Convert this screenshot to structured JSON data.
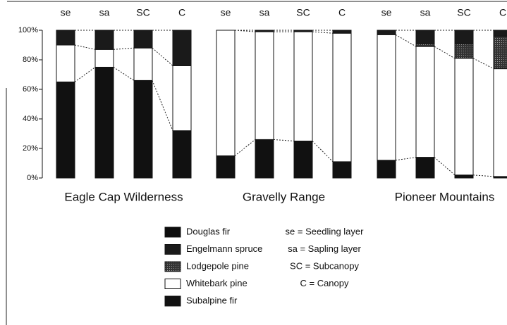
{
  "chart_data": {
    "type": "stacked_bar",
    "ylim": [
      0,
      100
    ],
    "yticks": [
      {
        "value": 0,
        "label": "0%"
      },
      {
        "value": 20,
        "label": "20%"
      },
      {
        "value": 40,
        "label": "40%"
      },
      {
        "value": 60,
        "label": "60%"
      },
      {
        "value": 80,
        "label": "80%"
      },
      {
        "value": 100,
        "label": "100%"
      }
    ],
    "panels": [
      {
        "title": "Eagle Cap Wilderness",
        "categories": [
          "se",
          "sa",
          "SC",
          "C"
        ],
        "series": [
          {
            "name": "Subalpine fir",
            "color": "#111111",
            "values": [
              65,
              75,
              66,
              32
            ]
          },
          {
            "name": "Whitebark pine",
            "color": "#ffffff",
            "values": [
              25,
              12,
              22,
              44
            ]
          },
          {
            "name": "Lodgepole pine",
            "color": "#555555",
            "values": [
              0,
              0,
              0,
              0
            ]
          },
          {
            "name": "Engelmann spruce",
            "color": "#1a1a1a",
            "values": [
              10,
              13,
              12,
              24
            ]
          },
          {
            "name": "Douglas fir",
            "color": "#0d0d0d",
            "values": [
              0,
              0,
              0,
              0
            ]
          }
        ]
      },
      {
        "title": "Gravelly Range",
        "categories": [
          "se",
          "sa",
          "SC",
          "C"
        ],
        "series": [
          {
            "name": "Subalpine fir",
            "color": "#111111",
            "values": [
              15,
              26,
              25,
              11
            ]
          },
          {
            "name": "Whitebark pine",
            "color": "#ffffff",
            "values": [
              85,
              73,
              74,
              87
            ]
          },
          {
            "name": "Lodgepole pine",
            "color": "#555555",
            "values": [
              0,
              0,
              0,
              0
            ]
          },
          {
            "name": "Engelmann spruce",
            "color": "#1a1a1a",
            "values": [
              0,
              1,
              1,
              2
            ]
          },
          {
            "name": "Douglas fir",
            "color": "#0d0d0d",
            "values": [
              0,
              0,
              0,
              0
            ]
          }
        ]
      },
      {
        "title": "Pioneer Mountains",
        "categories": [
          "se",
          "sa",
          "SC",
          "C"
        ],
        "series": [
          {
            "name": "Subalpine fir",
            "color": "#111111",
            "values": [
              12,
              14,
              2,
              1
            ]
          },
          {
            "name": "Whitebark pine",
            "color": "#ffffff",
            "values": [
              85,
              75,
              79,
              73
            ]
          },
          {
            "name": "Lodgepole pine",
            "color": "#555555",
            "values": [
              0,
              2,
              10,
              22
            ]
          },
          {
            "name": "Engelmann spruce",
            "color": "#1a1a1a",
            "values": [
              3,
              9,
              9,
              4
            ]
          },
          {
            "name": "Douglas fir",
            "color": "#0d0d0d",
            "values": [
              0,
              0,
              0,
              0
            ]
          }
        ]
      }
    ],
    "legend_order": [
      "Douglas fir",
      "Engelmann spruce",
      "Lodgepole pine",
      "Whitebark pine",
      "Subalpine fir"
    ],
    "abbreviations": [
      "se = Seedling layer",
      "sa = Sapling layer",
      "SC = Subcanopy",
      "C = Canopy"
    ]
  }
}
